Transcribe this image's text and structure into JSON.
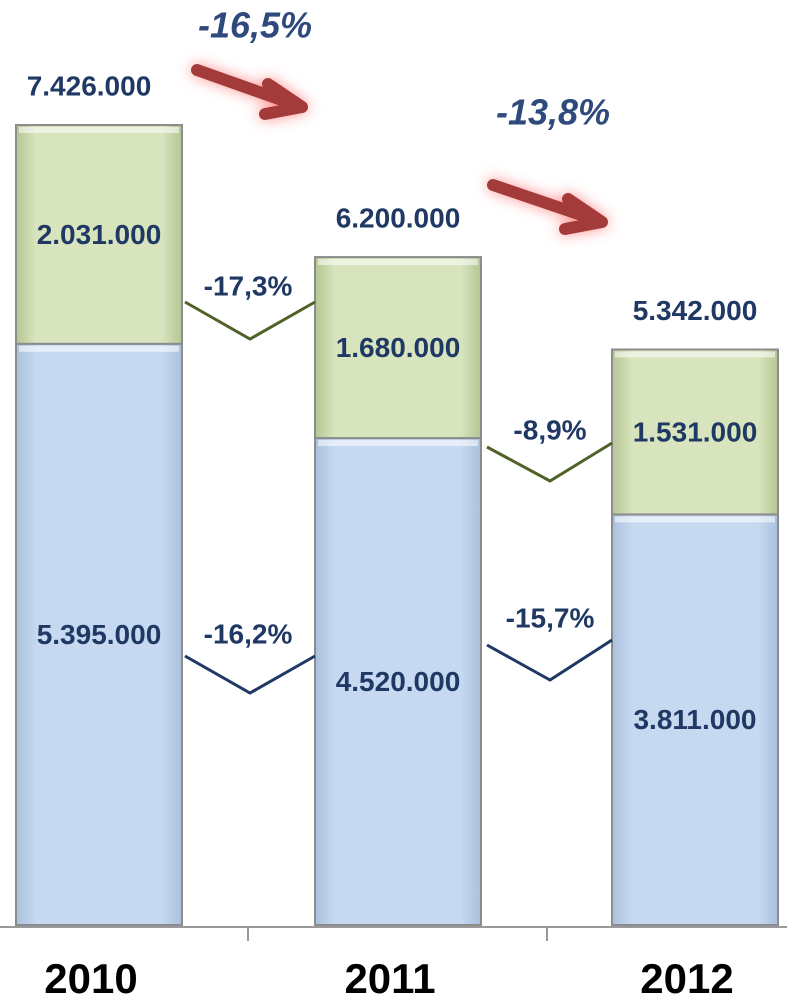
{
  "chart_data": {
    "type": "stacked-bar",
    "categories": [
      "2010",
      "2011",
      "2012"
    ],
    "series": [
      {
        "color": "#c6d9f1",
        "values": [
          5395000,
          4520000,
          3811000
        ],
        "value_labels": [
          "5.395.000",
          "4.520.000",
          "3.811.000"
        ]
      },
      {
        "color": "#d7e4bd",
        "values": [
          2031000,
          1680000,
          1531000
        ],
        "value_labels": [
          "2.031.000",
          "1.680.000",
          "1.531.000"
        ]
      }
    ],
    "totals": [
      7426000,
      6200000,
      5342000
    ],
    "total_labels": [
      "7.426.000",
      "6.200.000",
      "5.342.000"
    ],
    "annotations": [
      "-16,5%",
      "-13,8%",
      "-17,3%",
      "-8,9%",
      "-16,2%",
      "-15,7%"
    ]
  }
}
